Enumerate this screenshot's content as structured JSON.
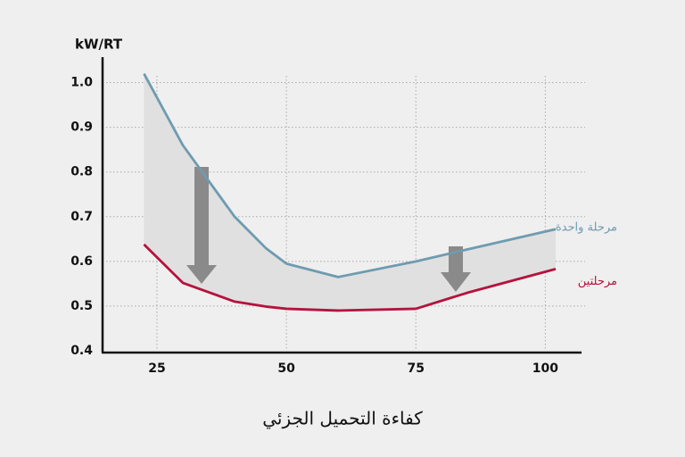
{
  "chart_data": {
    "type": "line",
    "y_unit": "kW/RT",
    "x_label": "كفاءة التحميل الجزئي",
    "x": [
      22.5,
      30,
      40,
      46,
      50,
      60,
      75,
      85,
      102
    ],
    "series": [
      {
        "name": "مرحلة واحدة",
        "color": "#6f9bb0",
        "values": [
          1.02,
          0.86,
          0.7,
          0.63,
          0.595,
          0.565,
          0.6,
          0.627,
          0.672
        ]
      },
      {
        "name": "مرحلتين",
        "color": "#b5123e",
        "values": [
          0.638,
          0.552,
          0.51,
          0.499,
          0.494,
          0.49,
          0.494,
          0.53,
          0.583
        ]
      }
    ],
    "xlim": [
      14.5,
      107
    ],
    "ylim": [
      0.4,
      1.055
    ],
    "xticks": [
      25,
      50,
      75,
      100
    ],
    "yticks": [
      0.4,
      0.5,
      0.6,
      0.7,
      0.8,
      0.9,
      {
        "value": 1,
        "label": "1.0"
      }
    ],
    "grid": true
  }
}
